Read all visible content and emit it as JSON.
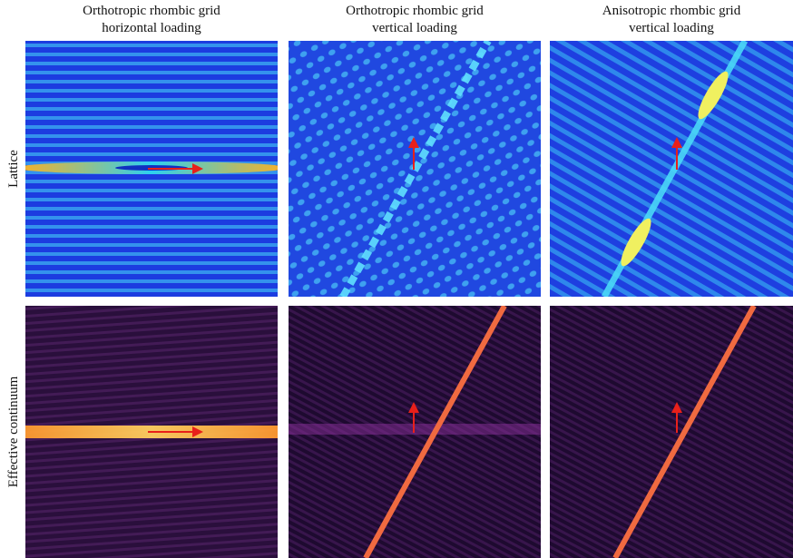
{
  "columns": [
    {
      "title": [
        "Orthotropic rhombic grid",
        "horizontal loading"
      ]
    },
    {
      "title": [
        "Orthotropic rhombic grid",
        "vertical loading"
      ]
    },
    {
      "title": [
        "Anisotropic rhombic grid",
        "vertical loading"
      ]
    }
  ],
  "rows": [
    {
      "label": "Lattice"
    },
    {
      "label": "Effective continuum"
    }
  ]
}
